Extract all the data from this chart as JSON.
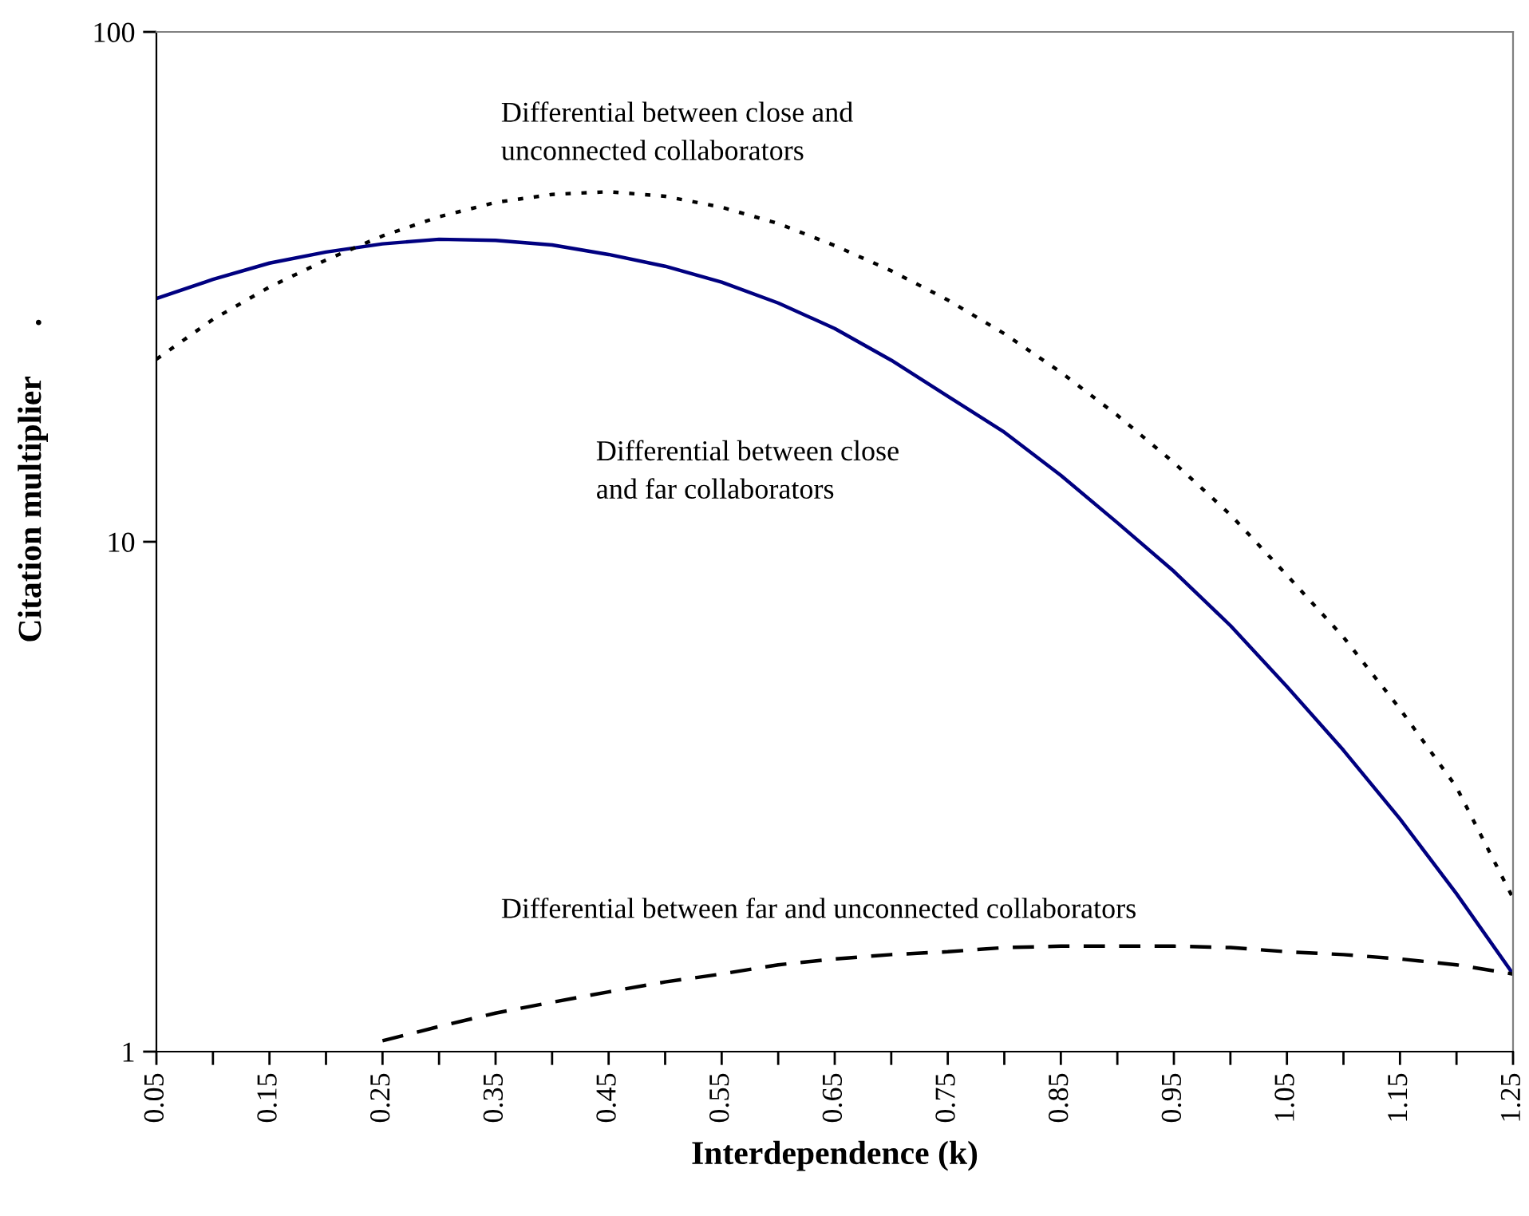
{
  "chart_data": {
    "type": "line",
    "xlabel": "Interdependence (k)",
    "ylabel": "Citation multiplier      .",
    "log": "y",
    "x": [
      0.05,
      0.1,
      0.15,
      0.2,
      0.25,
      0.3,
      0.35,
      0.4,
      0.45,
      0.5,
      0.55,
      0.6,
      0.65,
      0.7,
      0.75,
      0.8,
      0.85,
      0.9,
      0.95,
      1.0,
      1.05,
      1.1,
      1.15,
      1.2,
      1.25
    ],
    "series": [
      {
        "color": "#000080",
        "line_style": "solid",
        "values": [
          30,
          32.7,
          35.2,
          37,
          38.4,
          39.2,
          39,
          38.2,
          36.6,
          34.7,
          32.3,
          29.4,
          26.2,
          22.7,
          19.3,
          16.4,
          13.5,
          10.9,
          8.75,
          6.85,
          5.2,
          3.9,
          2.86,
          2.04,
          1.42
        ]
      },
      {
        "color": "#000000",
        "line_style": "dotted",
        "values": [
          22.8,
          27.3,
          31.6,
          35.7,
          39.8,
          43.4,
          46.3,
          48,
          48.6,
          47.6,
          45.3,
          42.1,
          38.1,
          34,
          29.8,
          25.6,
          21.5,
          17.7,
          14.3,
          11.3,
          8.6,
          6.5,
          4.7,
          3.3,
          2.0
        ]
      },
      {
        "color": "#000000",
        "line_style": "dashed",
        "values": [
          null,
          null,
          null,
          null,
          1.05,
          1.12,
          1.19,
          1.25,
          1.31,
          1.37,
          1.42,
          1.48,
          1.52,
          1.55,
          1.57,
          1.6,
          1.61,
          1.61,
          1.61,
          1.6,
          1.57,
          1.55,
          1.52,
          1.48,
          1.42
        ]
      }
    ],
    "annotations": [
      "Differential between close and\nunconnected collaborators",
      "Differential between close\nand far collaborators",
      "Differential between far and unconnected collaborators"
    ],
    "xlim": [
      0.05,
      1.25
    ],
    "ylim": [
      1,
      100
    ],
    "yticks": [
      1,
      10,
      100
    ],
    "xticks": [
      0.05,
      {
        "value": 0.1,
        "label": null
      },
      0.15,
      {
        "value": 0.2,
        "label": null
      },
      0.25,
      {
        "value": 0.3,
        "label": null
      },
      0.35,
      {
        "value": 0.4,
        "label": null
      },
      0.45,
      {
        "value": 0.5,
        "label": null
      },
      0.55,
      {
        "value": 0.6,
        "label": null
      },
      0.65,
      {
        "value": 0.7,
        "label": null
      },
      0.75,
      {
        "value": 0.8,
        "label": null
      },
      0.85,
      {
        "value": 0.9,
        "label": null
      },
      0.95,
      {
        "value": 1.0,
        "label": null
      },
      1.05,
      {
        "value": 1.1,
        "label": null
      },
      1.15,
      {
        "value": 1.2,
        "label": null
      },
      1.25
    ],
    "grid": false,
    "legend": false
  }
}
